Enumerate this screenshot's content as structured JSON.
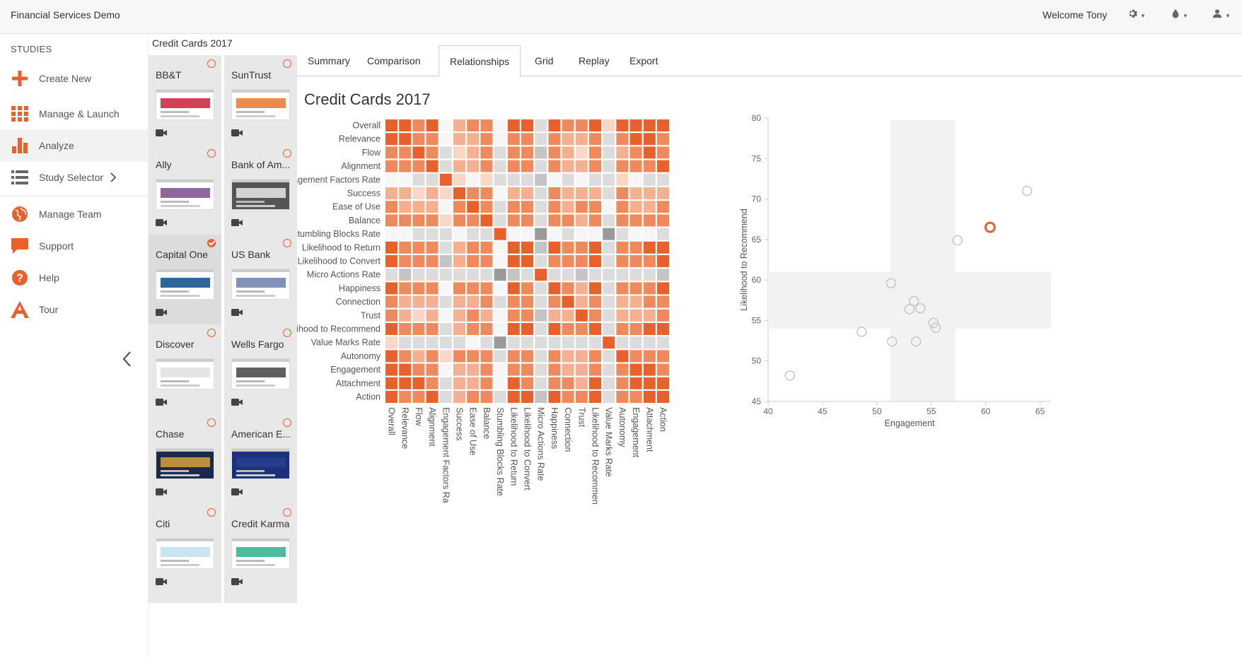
{
  "topbar": {
    "app_title": "Financial Services Demo",
    "welcome": "Welcome Tony",
    "icons": [
      "gear-icon",
      "droplet-icon",
      "user-icon"
    ]
  },
  "sidebar": {
    "title": "STUDIES",
    "items": [
      {
        "label": "Create New",
        "icon": "plus-icon"
      },
      {
        "label": "Manage & Launch",
        "icon": "grid-icon"
      },
      {
        "label": "Analyze",
        "icon": "bar-chart-icon"
      },
      {
        "label": "Study Selector",
        "icon": "list-icon"
      },
      {
        "label": "Manage Team",
        "icon": "globe-icon"
      },
      {
        "label": "Support",
        "icon": "chat-icon"
      },
      {
        "label": "Help",
        "icon": "question-icon"
      },
      {
        "label": "Tour",
        "icon": "tour-icon"
      }
    ]
  },
  "studies": {
    "title": "Credit Cards 2017",
    "cards": [
      {
        "name": "BB&T",
        "checked": false
      },
      {
        "name": "SunTrust",
        "checked": false
      },
      {
        "name": "Ally",
        "checked": false
      },
      {
        "name": "Bank of Am...",
        "checked": false
      },
      {
        "name": "Capital One",
        "checked": true
      },
      {
        "name": "US Bank",
        "checked": false
      },
      {
        "name": "Discover",
        "checked": false
      },
      {
        "name": "Wells Fargo",
        "checked": false
      },
      {
        "name": "Chase",
        "checked": false
      },
      {
        "name": "American E...",
        "checked": false
      },
      {
        "name": "Citi",
        "checked": false
      },
      {
        "name": "Credit Karma",
        "checked": false
      }
    ]
  },
  "tabs": [
    "Summary",
    "Comparison",
    "Relationships",
    "Grid",
    "Replay",
    "Export"
  ],
  "active_tab": "Relationships",
  "page_title": "Credit Cards 2017",
  "colors": {
    "accent": "#e8612c"
  },
  "chart_data": [
    {
      "type": "heatmap",
      "title": "",
      "rows": [
        "Overall",
        "Relevance",
        "Flow",
        "Alignment",
        "Engagement Factors Rate",
        "Success",
        "Ease of Use",
        "Balance",
        "Stumbling Blocks Rate",
        "Likelihood to Return",
        "Likelihood to Convert",
        "Micro Actions Rate",
        "Happiness",
        "Connection",
        "Trust",
        "Likelihood to Recommend",
        "Value Marks Rate",
        "Autonomy",
        "Engagement",
        "Attachment",
        "Action"
      ],
      "columns": [
        "Overall",
        "Relevance",
        "Flow",
        "Alignment",
        "Engagement Factors Ra",
        "Success",
        "Ease of Use",
        "Balance",
        "Stumbling Blocks Rate",
        "Likelihood to Return",
        "Likelihood to Convert",
        "Micro Actions Rate",
        "Happiness",
        "Connection",
        "Trust",
        "Likelihood to Recommen",
        "Value Marks Rate",
        "Autonomy",
        "Engagement",
        "Attachment",
        "Action"
      ],
      "values": [
        [
          4,
          4,
          3,
          4,
          0,
          2,
          3,
          3,
          0,
          4,
          4,
          -1,
          4,
          3,
          3,
          4,
          1,
          4,
          4,
          4,
          4
        ],
        [
          4,
          4,
          3,
          3,
          0,
          2,
          2,
          3,
          0,
          3,
          3,
          -1,
          3,
          2,
          2,
          3,
          -1,
          3,
          4,
          4,
          3
        ],
        [
          3,
          3,
          4,
          3,
          -1,
          1,
          2,
          3,
          -1,
          3,
          3,
          -2,
          3,
          2,
          1,
          3,
          -1,
          2,
          3,
          4,
          3
        ],
        [
          3,
          3,
          3,
          4,
          -1,
          2,
          2,
          3,
          -1,
          3,
          3,
          -1,
          3,
          2,
          2,
          3,
          -1,
          3,
          3,
          3,
          4
        ],
        [
          0,
          0,
          -1,
          -1,
          4,
          1,
          0,
          1,
          -1,
          -1,
          -1,
          -2,
          0,
          -1,
          0,
          -1,
          -1,
          1,
          0,
          -1,
          -1
        ],
        [
          2,
          2,
          1,
          2,
          1,
          4,
          3,
          3,
          0,
          2,
          2,
          -1,
          3,
          2,
          2,
          2,
          -1,
          3,
          2,
          2,
          2
        ],
        [
          3,
          2,
          2,
          2,
          0,
          3,
          4,
          3,
          -1,
          3,
          3,
          -1,
          3,
          2,
          3,
          3,
          0,
          3,
          2,
          2,
          3
        ],
        [
          3,
          3,
          3,
          3,
          1,
          3,
          3,
          4,
          -1,
          3,
          3,
          -1,
          3,
          3,
          2,
          3,
          -1,
          3,
          3,
          3,
          3
        ],
        [
          0,
          0,
          -1,
          -1,
          -1,
          0,
          -1,
          -1,
          4,
          0,
          0,
          -3,
          0,
          -1,
          0,
          0,
          -3,
          -1,
          0,
          0,
          -1
        ],
        [
          4,
          3,
          3,
          3,
          -1,
          2,
          3,
          3,
          0,
          4,
          4,
          -2,
          4,
          3,
          3,
          4,
          -1,
          3,
          3,
          4,
          4
        ],
        [
          4,
          3,
          3,
          3,
          -2,
          2,
          3,
          3,
          0,
          4,
          4,
          -1,
          3,
          3,
          3,
          4,
          -1,
          3,
          3,
          3,
          4
        ],
        [
          -1,
          -2,
          -1,
          -1,
          -1,
          -1,
          -1,
          -1,
          -3,
          -2,
          -1,
          4,
          -1,
          -1,
          -2,
          -1,
          -1,
          -1,
          -1,
          -1,
          -2
        ],
        [
          4,
          3,
          3,
          3,
          0,
          3,
          3,
          3,
          0,
          4,
          3,
          -1,
          4,
          3,
          2,
          4,
          -1,
          3,
          3,
          3,
          4
        ],
        [
          3,
          2,
          2,
          2,
          -1,
          2,
          2,
          3,
          -1,
          3,
          3,
          -1,
          3,
          4,
          2,
          3,
          -1,
          2,
          2,
          3,
          3
        ],
        [
          3,
          2,
          1,
          2,
          0,
          2,
          3,
          2,
          0,
          3,
          3,
          -2,
          2,
          2,
          4,
          3,
          -1,
          2,
          2,
          2,
          3
        ],
        [
          4,
          3,
          3,
          3,
          -1,
          2,
          3,
          3,
          0,
          4,
          4,
          -1,
          4,
          3,
          3,
          4,
          -1,
          3,
          3,
          4,
          4
        ],
        [
          1,
          -1,
          -1,
          -1,
          -1,
          -1,
          0,
          -1,
          -3,
          -1,
          -1,
          -1,
          -1,
          -1,
          -1,
          -1,
          4,
          -1,
          -1,
          -1,
          -1
        ],
        [
          4,
          3,
          2,
          3,
          1,
          3,
          3,
          3,
          -1,
          3,
          3,
          -1,
          3,
          2,
          2,
          3,
          -1,
          4,
          3,
          3,
          3
        ],
        [
          4,
          4,
          3,
          3,
          0,
          2,
          2,
          3,
          0,
          3,
          3,
          -1,
          3,
          2,
          2,
          3,
          -1,
          3,
          4,
          4,
          3
        ],
        [
          4,
          4,
          4,
          3,
          -1,
          2,
          2,
          3,
          0,
          4,
          3,
          -1,
          3,
          3,
          2,
          4,
          -1,
          3,
          4,
          4,
          4
        ],
        [
          4,
          3,
          3,
          4,
          -1,
          2,
          3,
          3,
          -1,
          4,
          4,
          -2,
          4,
          3,
          3,
          4,
          -1,
          3,
          3,
          4,
          4
        ]
      ]
    },
    {
      "type": "scatter",
      "xlabel": "Engagement",
      "ylabel": "Likelihood to Recommend",
      "xlim": [
        40,
        66
      ],
      "ylim": [
        45,
        80
      ],
      "xticks": [
        40,
        45,
        50,
        55,
        60,
        65
      ],
      "yticks": [
        45,
        50,
        55,
        60,
        65,
        70,
        75,
        80
      ],
      "band_x": [
        51.2,
        57.2
      ],
      "band_y": [
        54,
        61
      ],
      "points": [
        {
          "x": 42.0,
          "y": 48.2,
          "highlight": false
        },
        {
          "x": 48.6,
          "y": 53.6,
          "highlight": false
        },
        {
          "x": 51.4,
          "y": 52.4,
          "highlight": false
        },
        {
          "x": 51.3,
          "y": 59.6,
          "highlight": false
        },
        {
          "x": 53.0,
          "y": 56.4,
          "highlight": false
        },
        {
          "x": 53.4,
          "y": 57.4,
          "highlight": false
        },
        {
          "x": 54.0,
          "y": 56.5,
          "highlight": false
        },
        {
          "x": 53.6,
          "y": 52.4,
          "highlight": false
        },
        {
          "x": 55.2,
          "y": 54.7,
          "highlight": false
        },
        {
          "x": 55.4,
          "y": 54.1,
          "highlight": false
        },
        {
          "x": 57.4,
          "y": 64.9,
          "highlight": false
        },
        {
          "x": 60.4,
          "y": 66.5,
          "highlight": true
        },
        {
          "x": 63.8,
          "y": 71.0,
          "highlight": false
        }
      ]
    }
  ]
}
